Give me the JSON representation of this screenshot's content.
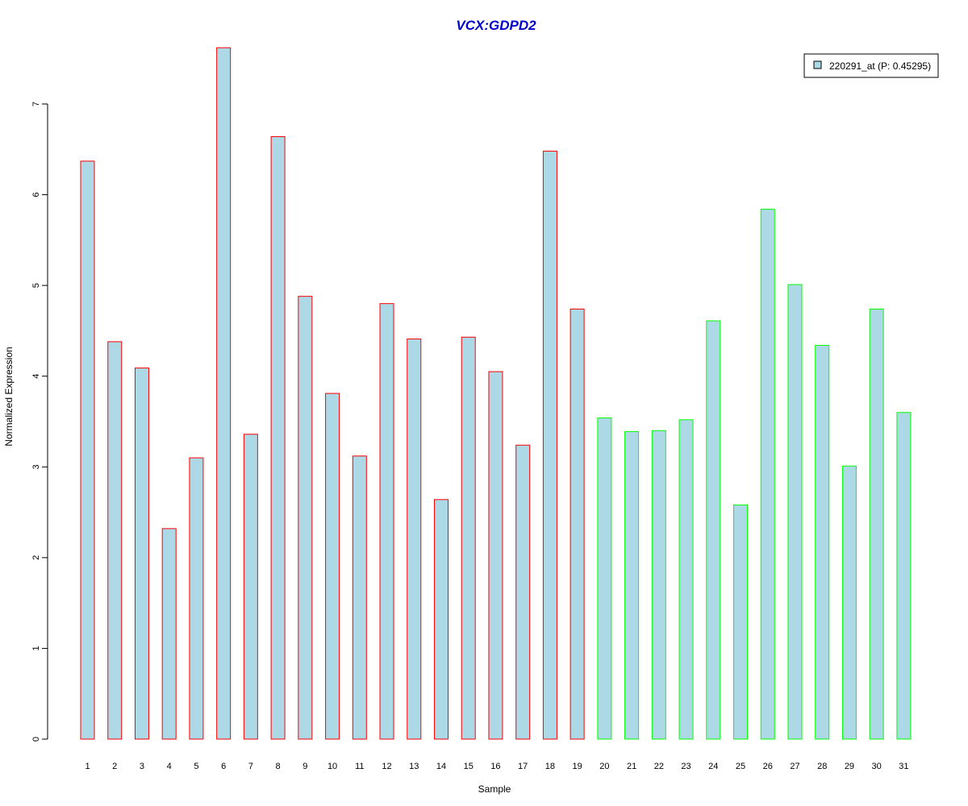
{
  "chart_data": {
    "type": "bar",
    "title": "VCX:GDPD2",
    "xlabel": "Sample",
    "ylabel": "Normalized Expression",
    "ylim": [
      0,
      7.6
    ],
    "yticks": [
      0,
      1,
      2,
      3,
      4,
      5,
      6,
      7
    ],
    "grid": false,
    "legend_position": "top-right",
    "categories": [
      "1",
      "2",
      "3",
      "4",
      "5",
      "6",
      "7",
      "8",
      "9",
      "10",
      "11",
      "12",
      "13",
      "14",
      "15",
      "16",
      "17",
      "18",
      "19",
      "20",
      "21",
      "22",
      "23",
      "24",
      "25",
      "26",
      "27",
      "28",
      "29",
      "30",
      "31"
    ],
    "series": [
      {
        "name": "220291_at (P: 0.45295)",
        "fill_color": "#ADD8E6",
        "values": [
          6.37,
          4.38,
          4.09,
          2.32,
          3.1,
          7.62,
          3.36,
          6.64,
          4.88,
          3.81,
          3.12,
          4.8,
          4.41,
          2.64,
          4.43,
          4.05,
          3.24,
          6.48,
          4.74,
          3.54,
          3.39,
          3.4,
          3.52,
          4.61,
          2.58,
          5.84,
          5.01,
          4.34,
          3.01,
          4.74,
          3.6
        ]
      }
    ],
    "border_colors": [
      "#FF0000",
      "#FF0000",
      "#FF0000",
      "#FF0000",
      "#FF0000",
      "#FF0000",
      "#FF0000",
      "#FF0000",
      "#FF0000",
      "#FF0000",
      "#FF0000",
      "#FF0000",
      "#FF0000",
      "#FF0000",
      "#FF0000",
      "#FF0000",
      "#FF0000",
      "#FF0000",
      "#FF0000",
      "#00FF00",
      "#00FF00",
      "#00FF00",
      "#00FF00",
      "#00FF00",
      "#00FF00",
      "#00FF00",
      "#00FF00",
      "#00FF00",
      "#00FF00",
      "#00FF00",
      "#00FF00"
    ]
  }
}
